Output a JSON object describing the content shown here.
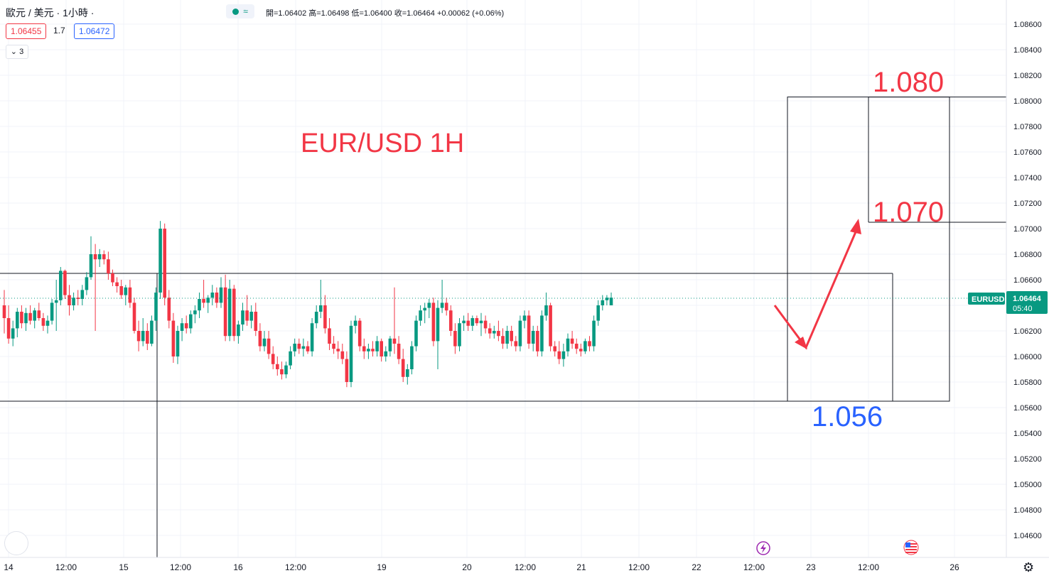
{
  "header": {
    "symbol_title": "歐元 / 美元 · 1小時 ·",
    "ohlc_text": "開=1.06402 高=1.06498 低=1.06400 收=1.06464 +0.00062 (+0.06%)",
    "bid_price": "1.06455",
    "spread": "1.7",
    "ask_price": "1.06472",
    "indicator_count": "3",
    "mode_icon": "≈"
  },
  "colors": {
    "up": "#089981",
    "down": "#f23645",
    "annotation_red": "#f23645",
    "annotation_blue": "#2962ff",
    "price_line": "#089981"
  },
  "chart_data": {
    "type": "candlestick",
    "title": "EUR/USD 1H",
    "y_ticks": [
      "1.08600",
      "1.08400",
      "1.08200",
      "1.08000",
      "1.07800",
      "1.07600",
      "1.07400",
      "1.07200",
      "1.07000",
      "1.06800",
      "1.06600",
      "1.06400",
      "1.06200",
      "1.06000",
      "1.05800",
      "1.05600",
      "1.05400",
      "1.05200",
      "1.05000",
      "1.04800",
      "1.04600"
    ],
    "ylim": [
      1.045,
      1.087
    ],
    "x_ticks": [
      "14",
      "12:00",
      "15",
      "12:00",
      "16",
      "12:00",
      "19",
      "20",
      "12:00",
      "21",
      "12:00",
      "22",
      "12:00",
      "23",
      "12:00",
      "26"
    ],
    "last_price": {
      "symbol": "EURUSD",
      "value": "1.06464",
      "countdown": "05:40"
    },
    "annotations": {
      "target_high": "1.080",
      "target_mid": "1.070",
      "support": "1.056"
    },
    "range_box": {
      "top": 1.0665,
      "bottom": 1.0565
    },
    "target_box": {
      "top": 1.0803,
      "bottom": 1.0705
    },
    "projection_path": [
      {
        "bar": 120,
        "price": 1.064
      },
      {
        "bar": 126,
        "price": 1.0607
      },
      {
        "bar": 135,
        "price": 1.07
      }
    ],
    "ohlc": [
      [
        1.064,
        1.0652,
        1.0618,
        1.063
      ],
      [
        1.063,
        1.064,
        1.061,
        1.0614
      ],
      [
        1.0614,
        1.0628,
        1.0608,
        1.0622
      ],
      [
        1.0622,
        1.0638,
        1.0615,
        1.0635
      ],
      [
        1.0635,
        1.064,
        1.0622,
        1.0626
      ],
      [
        1.0626,
        1.0638,
        1.062,
        1.0634
      ],
      [
        1.0634,
        1.064,
        1.0625,
        1.0628
      ],
      [
        1.0628,
        1.0638,
        1.0622,
        1.0636
      ],
      [
        1.0636,
        1.0642,
        1.0628,
        1.063
      ],
      [
        1.063,
        1.0634,
        1.062,
        1.0624
      ],
      [
        1.0624,
        1.0632,
        1.0618,
        1.0628
      ],
      [
        1.0628,
        1.0645,
        1.0625,
        1.0642
      ],
      [
        1.0642,
        1.066,
        1.062,
        1.0644
      ],
      [
        1.0644,
        1.067,
        1.064,
        1.0667
      ],
      [
        1.0667,
        1.0668,
        1.0645,
        1.0648
      ],
      [
        1.0648,
        1.0656,
        1.0632,
        1.064
      ],
      [
        1.064,
        1.065,
        1.0636,
        1.0646
      ],
      [
        1.0646,
        1.0652,
        1.064,
        1.0645
      ],
      [
        1.0645,
        1.0656,
        1.064,
        1.0652
      ],
      [
        1.0652,
        1.0666,
        1.0648,
        1.0662
      ],
      [
        1.0662,
        1.0694,
        1.066,
        1.068
      ],
      [
        1.068,
        1.0688,
        1.062,
        1.0676
      ],
      [
        1.0676,
        1.0684,
        1.067,
        1.068
      ],
      [
        1.068,
        1.0683,
        1.0672,
        1.0676
      ],
      [
        1.0676,
        1.0682,
        1.066,
        1.0665
      ],
      [
        1.0665,
        1.0668,
        1.0655,
        1.0658
      ],
      [
        1.0658,
        1.0662,
        1.065,
        1.0655
      ],
      [
        1.0655,
        1.066,
        1.0645,
        1.0648
      ],
      [
        1.0648,
        1.0656,
        1.064,
        1.0654
      ],
      [
        1.0654,
        1.066,
        1.0638,
        1.0642
      ],
      [
        1.0642,
        1.0646,
        1.0618,
        1.062
      ],
      [
        1.062,
        1.0628,
        1.0604,
        1.0612
      ],
      [
        1.0612,
        1.063,
        1.0608,
        1.062
      ],
      [
        1.062,
        1.0626,
        1.0605,
        1.061
      ],
      [
        1.061,
        1.0632,
        1.0608,
        1.0628
      ],
      [
        1.0628,
        1.0654,
        1.062,
        1.065
      ],
      [
        1.065,
        1.0706,
        1.0645,
        1.07
      ],
      [
        1.07,
        1.0704,
        1.064,
        1.0646
      ],
      [
        1.0646,
        1.0652,
        1.0622,
        1.0628
      ],
      [
        1.0628,
        1.0634,
        1.0595,
        1.06
      ],
      [
        1.06,
        1.0624,
        1.0594,
        1.062
      ],
      [
        1.062,
        1.063,
        1.0612,
        1.0626
      ],
      [
        1.0626,
        1.0632,
        1.0618,
        1.0622
      ],
      [
        1.0622,
        1.0636,
        1.0618,
        1.0633
      ],
      [
        1.0633,
        1.064,
        1.0626,
        1.0636
      ],
      [
        1.0636,
        1.065,
        1.063,
        1.0645
      ],
      [
        1.0645,
        1.066,
        1.0638,
        1.0642
      ],
      [
        1.0642,
        1.0648,
        1.0634,
        1.0646
      ],
      [
        1.0646,
        1.0656,
        1.064,
        1.065
      ],
      [
        1.065,
        1.0654,
        1.0638,
        1.0642
      ],
      [
        1.0642,
        1.0662,
        1.0638,
        1.0654
      ],
      [
        1.0654,
        1.0664,
        1.0612,
        1.0616
      ],
      [
        1.0616,
        1.066,
        1.0612,
        1.0653
      ],
      [
        1.0653,
        1.0656,
        1.0612,
        1.0616
      ],
      [
        1.0616,
        1.0628,
        1.061,
        1.0625
      ],
      [
        1.0625,
        1.0642,
        1.062,
        1.0636
      ],
      [
        1.0636,
        1.0648,
        1.0624,
        1.0628
      ],
      [
        1.0628,
        1.064,
        1.0622,
        1.0635
      ],
      [
        1.0635,
        1.0642,
        1.0616,
        1.062
      ],
      [
        1.062,
        1.0626,
        1.0604,
        1.0608
      ],
      [
        1.0608,
        1.062,
        1.0604,
        1.0614
      ],
      [
        1.0614,
        1.062,
        1.0598,
        1.0602
      ],
      [
        1.0602,
        1.0608,
        1.059,
        1.0594
      ],
      [
        1.0594,
        1.06,
        1.0585,
        1.059
      ],
      [
        1.059,
        1.0596,
        1.0582,
        1.0586
      ],
      [
        1.0586,
        1.0596,
        1.0583,
        1.0593
      ],
      [
        1.0593,
        1.0608,
        1.059,
        1.0604
      ],
      [
        1.0604,
        1.0614,
        1.06,
        1.061
      ],
      [
        1.061,
        1.0614,
        1.0602,
        1.0606
      ],
      [
        1.0606,
        1.0614,
        1.06,
        1.0608
      ],
      [
        1.0608,
        1.0612,
        1.0602,
        1.0604
      ],
      [
        1.0604,
        1.063,
        1.06,
        1.0626
      ],
      [
        1.0626,
        1.064,
        1.0622,
        1.0635
      ],
      [
        1.0635,
        1.066,
        1.063,
        1.064
      ],
      [
        1.064,
        1.0648,
        1.0618,
        1.0622
      ],
      [
        1.0622,
        1.063,
        1.0605,
        1.061
      ],
      [
        1.061,
        1.0616,
        1.0602,
        1.0606
      ],
      [
        1.0606,
        1.0612,
        1.0598,
        1.0604
      ],
      [
        1.0604,
        1.061,
        1.0594,
        1.0598
      ],
      [
        1.0598,
        1.0604,
        1.0576,
        1.058
      ],
      [
        1.058,
        1.0628,
        1.0576,
        1.0624
      ],
      [
        1.0624,
        1.0632,
        1.0618,
        1.0628
      ],
      [
        1.0628,
        1.063,
        1.0604,
        1.0608
      ],
      [
        1.0608,
        1.0614,
        1.0598,
        1.0604
      ],
      [
        1.0604,
        1.061,
        1.0598,
        1.0606
      ],
      [
        1.0606,
        1.0612,
        1.06,
        1.0604
      ],
      [
        1.0604,
        1.0616,
        1.06,
        1.0612
      ],
      [
        1.0612,
        1.0614,
        1.0596,
        1.06
      ],
      [
        1.06,
        1.0608,
        1.0596,
        1.0604
      ],
      [
        1.0604,
        1.0616,
        1.06,
        1.0614
      ],
      [
        1.0614,
        1.0654,
        1.0602,
        1.061
      ],
      [
        1.061,
        1.0616,
        1.0594,
        1.0598
      ],
      [
        1.0598,
        1.0606,
        1.058,
        1.0584
      ],
      [
        1.0584,
        1.0594,
        1.0578,
        1.059
      ],
      [
        1.059,
        1.0612,
        1.0586,
        1.0608
      ],
      [
        1.0608,
        1.0632,
        1.0604,
        1.0628
      ],
      [
        1.0628,
        1.064,
        1.0624,
        1.0636
      ],
      [
        1.0636,
        1.0642,
        1.0626,
        1.0638
      ],
      [
        1.0638,
        1.0645,
        1.063,
        1.0642
      ],
      [
        1.0642,
        1.0646,
        1.0608,
        1.0612
      ],
      [
        1.0612,
        1.0644,
        1.059,
        1.0638
      ],
      [
        1.0638,
        1.066,
        1.0634,
        1.0642
      ],
      [
        1.0642,
        1.0646,
        1.0632,
        1.0636
      ],
      [
        1.0636,
        1.064,
        1.0616,
        1.062
      ],
      [
        1.062,
        1.0626,
        1.0602,
        1.0608
      ],
      [
        1.0608,
        1.063,
        1.0604,
        1.0626
      ],
      [
        1.0626,
        1.0632,
        1.062,
        1.0628
      ],
      [
        1.0628,
        1.0634,
        1.062,
        1.0624
      ],
      [
        1.0624,
        1.0632,
        1.062,
        1.063
      ],
      [
        1.063,
        1.0632,
        1.0624,
        1.0626
      ],
      [
        1.0626,
        1.0634,
        1.0616,
        1.0628
      ],
      [
        1.0628,
        1.0632,
        1.0618,
        1.0622
      ],
      [
        1.0622,
        1.0626,
        1.0614,
        1.0618
      ],
      [
        1.0618,
        1.0624,
        1.0614,
        1.062
      ],
      [
        1.062,
        1.0628,
        1.0612,
        1.0616
      ],
      [
        1.0616,
        1.0622,
        1.0606,
        1.061
      ],
      [
        1.061,
        1.0624,
        1.0606,
        1.062
      ],
      [
        1.062,
        1.0624,
        1.0608,
        1.0612
      ],
      [
        1.0612,
        1.0616,
        1.0604,
        1.0608
      ],
      [
        1.0608,
        1.0632,
        1.0604,
        1.0628
      ],
      [
        1.0628,
        1.0636,
        1.0622,
        1.0632
      ],
      [
        1.0632,
        1.0636,
        1.0606,
        1.061
      ],
      [
        1.061,
        1.0624,
        1.0604,
        1.062
      ],
      [
        1.062,
        1.0624,
        1.06,
        1.0604
      ],
      [
        1.0604,
        1.0636,
        1.06,
        1.0632
      ],
      [
        1.0632,
        1.065,
        1.0628,
        1.064
      ],
      [
        1.064,
        1.0642,
        1.0604,
        1.0608
      ],
      [
        1.0608,
        1.0612,
        1.06,
        1.0604
      ],
      [
        1.0604,
        1.0612,
        1.0594,
        1.0598
      ],
      [
        1.0598,
        1.061,
        1.0592,
        1.0604
      ],
      [
        1.0604,
        1.0618,
        1.06,
        1.0614
      ],
      [
        1.0614,
        1.062,
        1.0606,
        1.061
      ],
      [
        1.061,
        1.0614,
        1.0602,
        1.0606
      ],
      [
        1.0606,
        1.061,
        1.06,
        1.0604
      ],
      [
        1.0604,
        1.0614,
        1.0602,
        1.0612
      ],
      [
        1.0612,
        1.0616,
        1.0604,
        1.0608
      ],
      [
        1.0608,
        1.0632,
        1.0604,
        1.0628
      ],
      [
        1.0628,
        1.0644,
        1.0624,
        1.064
      ],
      [
        1.064,
        1.0648,
        1.0636,
        1.0644
      ],
      [
        1.0644,
        1.0648,
        1.064,
        1.0646
      ],
      [
        1.064,
        1.065,
        1.064,
        1.0646
      ]
    ]
  }
}
